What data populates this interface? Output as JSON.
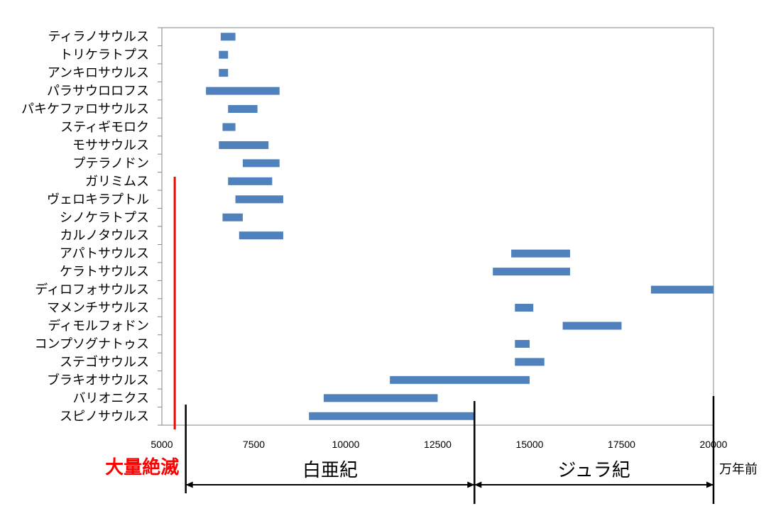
{
  "chart_data": {
    "type": "bar",
    "orientation": "horizontal",
    "xlim": [
      5000,
      20000
    ],
    "x_ticks": [
      "5000",
      "7500",
      "10000",
      "12500",
      "15000",
      "17500",
      "20000"
    ],
    "x_unit": "万年前",
    "grid": false,
    "categories": [
      "ティラノサウルス",
      "トリケラトプス",
      "アンキロサウルス",
      "パラサウロロフス",
      "パキケファロサウルス",
      "スティギモロク",
      "モササウルス",
      "プテラノドン",
      "ガリミムス",
      "ヴェロキラプトル",
      "シノケラトプス",
      "カルノタウルス",
      "アパトサウルス",
      "ケラトサウルス",
      "ディロフォサウルス",
      "マメンチサウルス",
      "ディモルフォドン",
      "コンプソグナトゥス",
      "ステゴサウルス",
      "ブラキオサウルス",
      "バリオニクス",
      "スピノサウルス"
    ],
    "ranges": [
      [
        6600,
        7000
      ],
      [
        6550,
        6800
      ],
      [
        6550,
        6800
      ],
      [
        6200,
        8200
      ],
      [
        6800,
        7600
      ],
      [
        6650,
        7000
      ],
      [
        6550,
        7900
      ],
      [
        7200,
        8200
      ],
      [
        6800,
        8000
      ],
      [
        7000,
        8300
      ],
      [
        6650,
        7200
      ],
      [
        7100,
        8300
      ],
      [
        14500,
        16100
      ],
      [
        14000,
        16100
      ],
      [
        18300,
        20000
      ],
      [
        14600,
        15100
      ],
      [
        15900,
        17500
      ],
      [
        14600,
        15000
      ],
      [
        14600,
        15400
      ],
      [
        11200,
        15000
      ],
      [
        9400,
        12500
      ],
      [
        9000,
        13500
      ]
    ],
    "bar_color": "#4f81bd",
    "annotations": {
      "extinction": {
        "label": "大量絶滅",
        "at": 5350,
        "color": "#ff0000"
      },
      "periods": [
        {
          "label": "白亜紀",
          "from": 5650,
          "to": 13500
        },
        {
          "label": "ジュラ紀",
          "from": 13500,
          "to": 20000
        }
      ]
    }
  }
}
